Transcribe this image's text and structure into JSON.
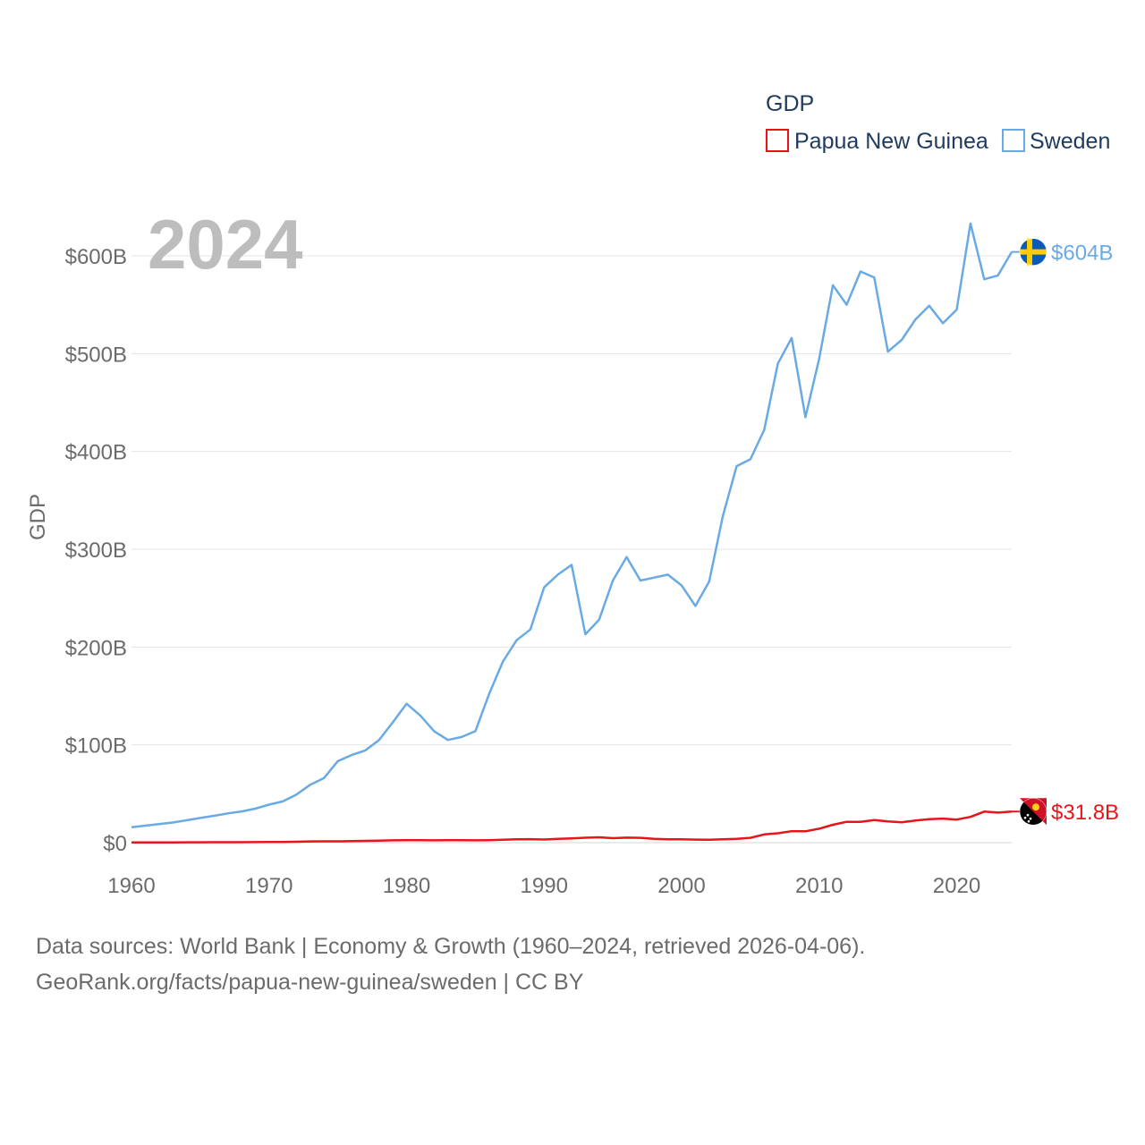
{
  "chart_data": {
    "type": "line",
    "legend_title": "GDP",
    "ylabel": "GDP",
    "year_label": "2024",
    "ylim": [
      0,
      600000000000
    ],
    "xlim": [
      1960,
      2024
    ],
    "y_ticks": [
      {
        "value": 0,
        "label": "$0"
      },
      {
        "value": 100000000000,
        "label": "$100B"
      },
      {
        "value": 200000000000,
        "label": "$200B"
      },
      {
        "value": 300000000000,
        "label": "$300B"
      },
      {
        "value": 400000000000,
        "label": "$400B"
      },
      {
        "value": 500000000000,
        "label": "$500B"
      },
      {
        "value": 600000000000,
        "label": "$600B"
      }
    ],
    "x_ticks": [
      {
        "value": 1960,
        "label": "1960"
      },
      {
        "value": 1970,
        "label": "1970"
      },
      {
        "value": 1980,
        "label": "1980"
      },
      {
        "value": 1990,
        "label": "1990"
      },
      {
        "value": 2000,
        "label": "2000"
      },
      {
        "value": 2010,
        "label": "2010"
      },
      {
        "value": 2020,
        "label": "2020"
      }
    ],
    "x": [
      1960,
      1961,
      1962,
      1963,
      1964,
      1965,
      1966,
      1967,
      1968,
      1969,
      1970,
      1971,
      1972,
      1973,
      1974,
      1975,
      1976,
      1977,
      1978,
      1979,
      1980,
      1981,
      1982,
      1983,
      1984,
      1985,
      1986,
      1987,
      1988,
      1989,
      1990,
      1991,
      1992,
      1993,
      1994,
      1995,
      1996,
      1997,
      1998,
      1999,
      2000,
      2001,
      2002,
      2003,
      2004,
      2005,
      2006,
      2007,
      2008,
      2009,
      2010,
      2011,
      2012,
      2013,
      2014,
      2015,
      2016,
      2017,
      2018,
      2019,
      2020,
      2021,
      2022,
      2023,
      2024
    ],
    "series": [
      {
        "name": "Papua New Guinea",
        "color": "#e8141a",
        "end_label": "$31.8B",
        "values": [
          0.23,
          0.25,
          0.27,
          0.3,
          0.34,
          0.38,
          0.42,
          0.47,
          0.5,
          0.58,
          0.65,
          0.73,
          0.95,
          1.3,
          1.4,
          1.4,
          1.6,
          1.8,
          2.1,
          2.4,
          2.5,
          2.6,
          2.4,
          2.6,
          2.5,
          2.4,
          2.6,
          3.0,
          3.5,
          3.6,
          3.2,
          3.8,
          4.4,
          5.0,
          5.5,
          4.6,
          5.1,
          4.9,
          3.8,
          3.5,
          3.5,
          3.1,
          2.9,
          3.5,
          3.9,
          4.9,
          8.4,
          9.6,
          11.7,
          11.6,
          14.3,
          18.3,
          21.3,
          21.3,
          23.1,
          21.7,
          20.8,
          22.7,
          24.1,
          24.6,
          23.6,
          26.3,
          31.7,
          30.7,
          31.8
        ]
      },
      {
        "name": "Sweden",
        "color": "#6aaae4",
        "end_label": "$604B",
        "values": [
          15.8,
          17.4,
          18.9,
          20.6,
          22.9,
          25.2,
          27.4,
          29.9,
          31.9,
          34.8,
          38.9,
          42.2,
          49.2,
          59.3,
          66.1,
          83.3,
          89.5,
          94.3,
          105,
          123,
          142,
          130,
          114,
          105,
          108,
          114,
          152,
          185,
          207,
          218,
          261,
          274,
          284,
          213,
          228,
          268,
          292,
          268,
          271,
          274,
          263,
          242,
          267,
          334,
          385,
          392,
          422,
          490,
          516,
          435,
          495,
          570,
          550,
          584,
          578,
          502,
          514,
          535,
          549,
          531,
          545,
          633,
          576,
          580,
          604
        ]
      }
    ]
  },
  "source_lines": [
    "Data sources: World Bank | Economy & Growth (1960–2024, retrieved 2026-04-06).",
    "GeoRank.org/facts/papua-new-guinea/sweden | CC BY"
  ]
}
